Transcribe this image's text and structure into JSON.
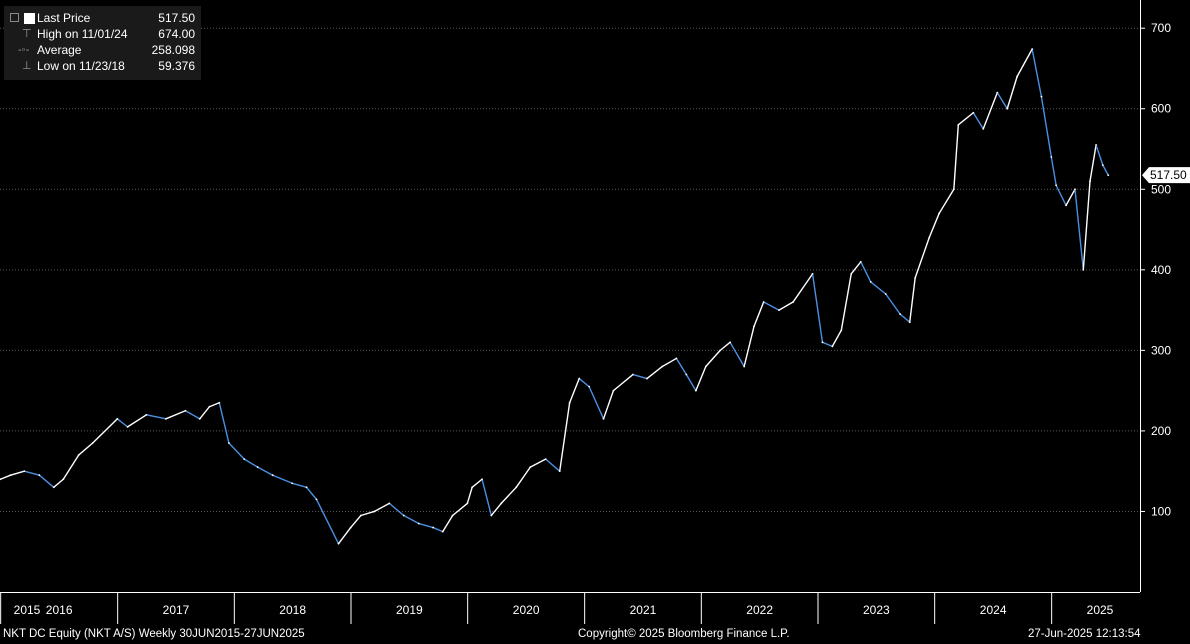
{
  "legend": {
    "last_price_label": "Last Price",
    "last_price_value": "517.50",
    "high_label": "High on 11/01/24",
    "high_value": "674.00",
    "average_label": "Average",
    "average_value": "258.098",
    "low_label": "Low on 11/23/18",
    "low_value": "59.376"
  },
  "last_price_tag": "517.50",
  "footer": {
    "left": "NKT DC Equity (NKT A/S)  Weekly 30JUN2015-27JUN2025",
    "center": "Copyright© 2025 Bloomberg Finance L.P.",
    "right": "27-Jun-2025 12:13:54"
  },
  "colors": {
    "background": "#000000",
    "line_up": "#ffffff",
    "line_down": "#4a90e2",
    "gridline": "#555555",
    "axis": "#ffffff"
  },
  "chart_data": {
    "type": "line",
    "title": "",
    "xlabel": "",
    "ylabel": "",
    "x_tick_labels": [
      "2015",
      "2016",
      "2017",
      "2018",
      "2019",
      "2020",
      "2021",
      "2022",
      "2023",
      "2024",
      "2025"
    ],
    "y_tick_labels": [
      "100",
      "200",
      "300",
      "400",
      "500",
      "600",
      "700"
    ],
    "ylim": [
      0,
      735
    ],
    "y_axis_side": "right",
    "grid": "horizontal dotted",
    "legend_placement": "top-left",
    "series": [
      {
        "name": "Last Price",
        "points": [
          [
            "2015-06-30",
            152
          ],
          [
            "2015-08-15",
            155
          ],
          [
            "2015-09-15",
            140
          ],
          [
            "2015-10-15",
            148
          ],
          [
            "2015-11-15",
            135
          ],
          [
            "2015-12-31",
            140
          ],
          [
            "2016-02-01",
            145
          ],
          [
            "2016-03-15",
            150
          ],
          [
            "2016-05-01",
            145
          ],
          [
            "2016-06-15",
            130
          ],
          [
            "2016-07-15",
            140
          ],
          [
            "2016-09-01",
            170
          ],
          [
            "2016-10-15",
            185
          ],
          [
            "2016-12-31",
            215
          ],
          [
            "2017-02-01",
            205
          ],
          [
            "2017-04-01",
            220
          ],
          [
            "2017-06-01",
            215
          ],
          [
            "2017-08-01",
            225
          ],
          [
            "2017-09-15",
            215
          ],
          [
            "2017-10-15",
            230
          ],
          [
            "2017-11-15",
            235
          ],
          [
            "2017-12-15",
            185
          ],
          [
            "2018-02-01",
            165
          ],
          [
            "2018-03-15",
            155
          ],
          [
            "2018-05-01",
            145
          ],
          [
            "2018-07-01",
            135
          ],
          [
            "2018-08-15",
            130
          ],
          [
            "2018-09-15",
            115
          ],
          [
            "2018-11-23",
            60
          ],
          [
            "2018-12-31",
            80
          ],
          [
            "2019-02-01",
            95
          ],
          [
            "2019-03-15",
            100
          ],
          [
            "2019-05-01",
            110
          ],
          [
            "2019-06-15",
            95
          ],
          [
            "2019-08-01",
            85
          ],
          [
            "2019-09-15",
            80
          ],
          [
            "2019-10-15",
            75
          ],
          [
            "2019-11-15",
            95
          ],
          [
            "2019-12-31",
            110
          ],
          [
            "2020-01-15",
            130
          ],
          [
            "2020-02-15",
            140
          ],
          [
            "2020-03-15",
            95
          ],
          [
            "2020-04-15",
            110
          ],
          [
            "2020-06-01",
            130
          ],
          [
            "2020-07-15",
            155
          ],
          [
            "2020-09-01",
            165
          ],
          [
            "2020-10-15",
            150
          ],
          [
            "2020-11-15",
            235
          ],
          [
            "2020-12-15",
            265
          ],
          [
            "2021-01-15",
            255
          ],
          [
            "2021-03-01",
            215
          ],
          [
            "2021-04-01",
            250
          ],
          [
            "2021-06-01",
            270
          ],
          [
            "2021-07-15",
            265
          ],
          [
            "2021-09-01",
            280
          ],
          [
            "2021-10-15",
            290
          ],
          [
            "2021-11-15",
            270
          ],
          [
            "2021-12-15",
            250
          ],
          [
            "2022-01-15",
            280
          ],
          [
            "2022-03-01",
            300
          ],
          [
            "2022-04-01",
            310
          ],
          [
            "2022-05-15",
            280
          ],
          [
            "2022-06-15",
            330
          ],
          [
            "2022-07-15",
            360
          ],
          [
            "2022-09-01",
            350
          ],
          [
            "2022-10-15",
            360
          ],
          [
            "2022-12-15",
            395
          ],
          [
            "2023-01-15",
            310
          ],
          [
            "2023-02-15",
            305
          ],
          [
            "2023-03-15",
            325
          ],
          [
            "2023-04-15",
            395
          ],
          [
            "2023-05-15",
            410
          ],
          [
            "2023-06-15",
            385
          ],
          [
            "2023-08-01",
            370
          ],
          [
            "2023-09-15",
            345
          ],
          [
            "2023-10-15",
            335
          ],
          [
            "2023-11-01",
            390
          ],
          [
            "2023-12-15",
            440
          ],
          [
            "2024-01-15",
            470
          ],
          [
            "2024-03-01",
            500
          ],
          [
            "2024-03-15",
            580
          ],
          [
            "2024-05-01",
            595
          ],
          [
            "2024-06-01",
            575
          ],
          [
            "2024-07-15",
            620
          ],
          [
            "2024-08-15",
            600
          ],
          [
            "2024-09-15",
            640
          ],
          [
            "2024-11-01",
            674
          ],
          [
            "2024-11-30",
            615
          ],
          [
            "2024-12-31",
            540
          ],
          [
            "2025-01-15",
            505
          ],
          [
            "2025-02-15",
            480
          ],
          [
            "2025-03-15",
            500
          ],
          [
            "2025-04-10",
            400
          ],
          [
            "2025-05-01",
            510
          ],
          [
            "2025-05-20",
            555
          ],
          [
            "2025-06-10",
            530
          ],
          [
            "2025-06-27",
            517.5
          ]
        ]
      }
    ],
    "average": 258.098,
    "high": {
      "date": "11/01/24",
      "value": 674.0
    },
    "low": {
      "date": "11/23/18",
      "value": 59.376
    },
    "last": 517.5
  }
}
